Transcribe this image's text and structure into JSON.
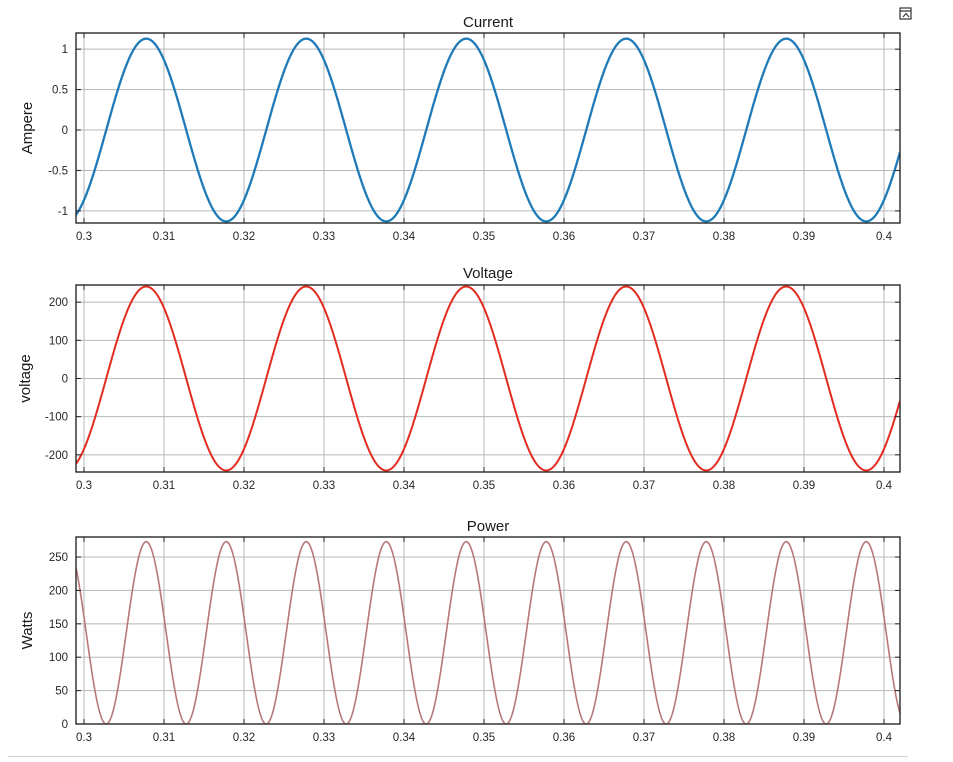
{
  "toolbar": {
    "undock_icon": "undock-icon"
  },
  "chart_data": [
    {
      "type": "line",
      "title": "Current",
      "xlabel": "",
      "ylabel": "Ampere",
      "xlim": [
        0.299,
        0.402
      ],
      "ylim": [
        -1.15,
        1.2
      ],
      "xticks": [
        0.3,
        0.31,
        0.32,
        0.33,
        0.34,
        0.35,
        0.36,
        0.37,
        0.38,
        0.39,
        0.4
      ],
      "xtick_labels": [
        "0.3",
        "0.31",
        "0.32",
        "0.33",
        "0.34",
        "0.35",
        "0.36",
        "0.37",
        "0.38",
        "0.39",
        "0.4"
      ],
      "yticks": [
        -1,
        -0.5,
        0,
        0.5,
        1
      ],
      "ytick_labels": [
        "-1",
        "-0.5",
        "0",
        "0.5",
        "1"
      ],
      "grid": true,
      "series": [
        {
          "waveform": "sine",
          "amplitude": 1.13,
          "frequency_hz": 50,
          "phase_deg": -50,
          "offset": 0,
          "color": "#1f7ab8",
          "line_width": 2.3
        }
      ]
    },
    {
      "type": "line",
      "title": "Voltage",
      "xlabel": "",
      "ylabel": "voltage",
      "xlim": [
        0.299,
        0.402
      ],
      "ylim": [
        -245,
        245
      ],
      "xticks": [
        0.3,
        0.31,
        0.32,
        0.33,
        0.34,
        0.35,
        0.36,
        0.37,
        0.38,
        0.39,
        0.4
      ],
      "xtick_labels": [
        "0.3",
        "0.31",
        "0.32",
        "0.33",
        "0.34",
        "0.35",
        "0.36",
        "0.37",
        "0.38",
        "0.39",
        "0.4"
      ],
      "yticks": [
        -200,
        -100,
        0,
        100,
        200
      ],
      "ytick_labels": [
        "-200",
        "-100",
        "0",
        "100",
        "200"
      ],
      "grid": true,
      "series": [
        {
          "waveform": "sine",
          "amplitude": 241,
          "frequency_hz": 50,
          "phase_deg": -50,
          "offset": 0,
          "color": "#e32b20",
          "line_width": 2
        }
      ]
    },
    {
      "type": "line",
      "title": "Power",
      "xlabel": "",
      "ylabel": "Watts",
      "xlim": [
        0.299,
        0.402
      ],
      "ylim": [
        0,
        280
      ],
      "xticks": [
        0.3,
        0.31,
        0.32,
        0.33,
        0.34,
        0.35,
        0.36,
        0.37,
        0.38,
        0.39,
        0.4
      ],
      "xtick_labels": [
        "0.3",
        "0.31",
        "0.32",
        "0.33",
        "0.34",
        "0.35",
        "0.36",
        "0.37",
        "0.38",
        "0.39",
        "0.4"
      ],
      "yticks": [
        0,
        50,
        100,
        150,
        200,
        250
      ],
      "ytick_labels": [
        "0",
        "50",
        "100",
        "150",
        "200",
        "250"
      ],
      "grid": true,
      "series": [
        {
          "waveform": "sine-squared",
          "amplitude": 273,
          "frequency_hz": 50,
          "phase_deg": -50,
          "offset": 0,
          "color": "#b87878",
          "line_width": 1.6
        }
      ]
    }
  ]
}
